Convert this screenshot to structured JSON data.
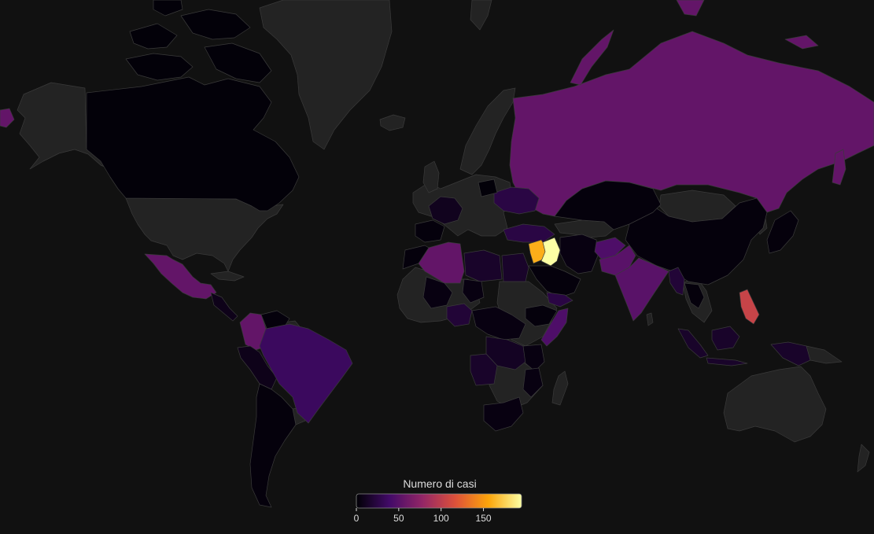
{
  "map": {
    "type": "choropleth",
    "background_color": "#111111",
    "no_data_color": "#232323",
    "colorscale": "inferno",
    "colorscale_stops": [
      "#000004",
      "#420a68",
      "#932667",
      "#dd513a",
      "#fca50a",
      "#fcffa4"
    ],
    "value_range": [
      0,
      195
    ]
  },
  "legend": {
    "title": "Numero di casi",
    "ticks": [
      0,
      50,
      100,
      150
    ],
    "tick_labels": [
      "0",
      "50",
      "100",
      "150"
    ],
    "placement": "bottom-center"
  },
  "chart_data": {
    "type": "choropleth",
    "title": "",
    "regions": [
      {
        "name": "Iraq",
        "value": 195
      },
      {
        "name": "Syria",
        "value": 160
      },
      {
        "name": "Philippines",
        "value": 105
      },
      {
        "name": "Colombia",
        "value": 55
      },
      {
        "name": "Russia",
        "value": 55
      },
      {
        "name": "Mexico",
        "value": 55
      },
      {
        "name": "Algeria",
        "value": 55
      },
      {
        "name": "India",
        "value": 50
      },
      {
        "name": "Pakistan",
        "value": 50
      },
      {
        "name": "Afghanistan",
        "value": 45
      },
      {
        "name": "Somalia",
        "value": 45
      },
      {
        "name": "Alaska (USA)",
        "value": 55
      },
      {
        "name": "Brazil",
        "value": 35
      },
      {
        "name": "Ukraine",
        "value": 25
      },
      {
        "name": "Turkey",
        "value": 25
      },
      {
        "name": "Yemen",
        "value": 25
      },
      {
        "name": "Nigeria",
        "value": 20
      },
      {
        "name": "Libya",
        "value": 15
      },
      {
        "name": "Egypt",
        "value": 15
      },
      {
        "name": "DR Congo",
        "value": 12
      },
      {
        "name": "Angola",
        "value": 15
      },
      {
        "name": "France",
        "value": 10
      },
      {
        "name": "Myanmar",
        "value": 20
      },
      {
        "name": "Indonesia",
        "value": 15
      },
      {
        "name": "Canada",
        "value": 2
      },
      {
        "name": "China",
        "value": 3
      },
      {
        "name": "Iran",
        "value": 5
      },
      {
        "name": "Saudi Arabia",
        "value": 3
      },
      {
        "name": "Kazakhstan",
        "value": 3
      },
      {
        "name": "Argentina",
        "value": 3
      },
      {
        "name": "Peru",
        "value": 8
      },
      {
        "name": "Mali",
        "value": 5
      },
      {
        "name": "South Africa",
        "value": 5
      }
    ]
  }
}
